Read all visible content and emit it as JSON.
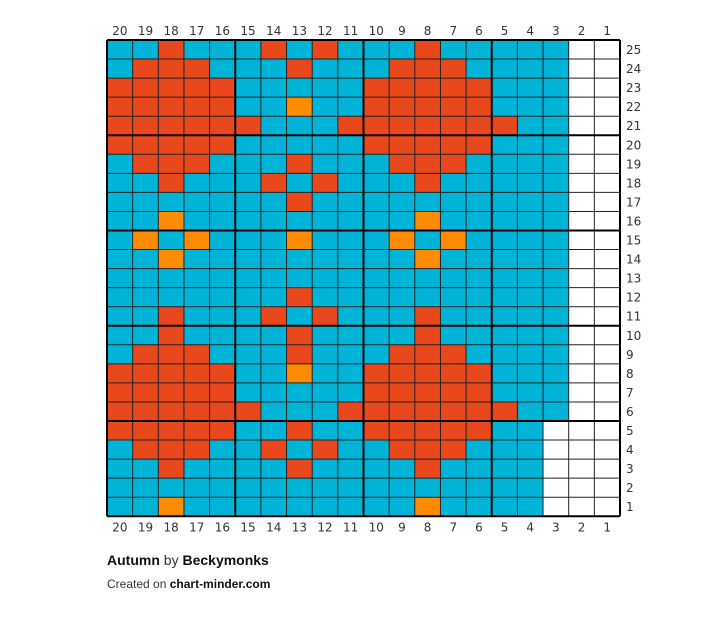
{
  "palette": {
    "B": "#00b4d8",
    "R": "#e8481c",
    "O": "#ff8c00",
    "W": "#ffffff",
    "line": "#222222",
    "major_line": "#000000"
  },
  "chart_data": {
    "type": "grid",
    "columns": 20,
    "rows": 25,
    "column_labels": [
      "20",
      "19",
      "18",
      "17",
      "16",
      "15",
      "14",
      "13",
      "12",
      "11",
      "10",
      "9",
      "8",
      "7",
      "6",
      "5",
      "4",
      "3",
      "2",
      "1"
    ],
    "row_labels": [
      "25",
      "24",
      "23",
      "22",
      "21",
      "20",
      "19",
      "18",
      "17",
      "16",
      "15",
      "14",
      "13",
      "12",
      "11",
      "10",
      "9",
      "8",
      "7",
      "6",
      "5",
      "4",
      "3",
      "2",
      "1"
    ],
    "cells": [
      "BBRBBBRBRBBBRBBBBBWW",
      "BRRRBBBRBBBRRRBBBBWW",
      "RRRRRBBBBBRRRRRBBBWW",
      "RRRRRBBOBBRRRRRBBBWW",
      "RRRRRRBBBRRRRRRRBBWW",
      "RRRRRBBBBBRRRRRBBBWW",
      "BRRRBBBRBBBRRRBBBBWW",
      "BBRBBBRBRBBBRBBBBBWW",
      "BBBBBBBRBBBBBBBBBBWW",
      "BBOBBBBBBBBBOBBBBBWW",
      "BOBOBBBOBBBOBOBBBBWW",
      "BBOBBBBBBBBBOBBBBBWW",
      "BBBBBBBBBBBBBBBBBBWW",
      "BBBBBBBRBBBBBBBBBBWW",
      "BBRBBBRBRBBBRBBBBBWW",
      "BBRBBBBRBBBBRBBBBBWW",
      "BRRRBBBRBBBRRRBBBBWW",
      "RRRRRBBOBBRRRRRBBBWW",
      "RRRRRBBBBBRRRRRBBBWW",
      "RRRRRRBBBRRRRRRRBBWW",
      "RRRRRBBRBBRRRRRBBWWW",
      "BRRRBBRBRBBRRRBBBWWW",
      "BBRBBBBRBBBBRBBBBWWW",
      "BBBBBBBBBBBBBBBBBWWW",
      "BBOBBBBBBBBBOBBBBWWW"
    ]
  },
  "footer": {
    "title": "Autumn",
    "by": "by",
    "author": "Beckymonks",
    "created_prefix": "Created on",
    "site": "chart-minder.com"
  }
}
